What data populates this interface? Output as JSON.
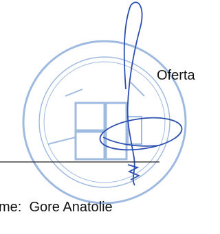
{
  "document": {
    "offer_label": "Oferta",
    "name_line": "me:  Gore Anatolie"
  }
}
